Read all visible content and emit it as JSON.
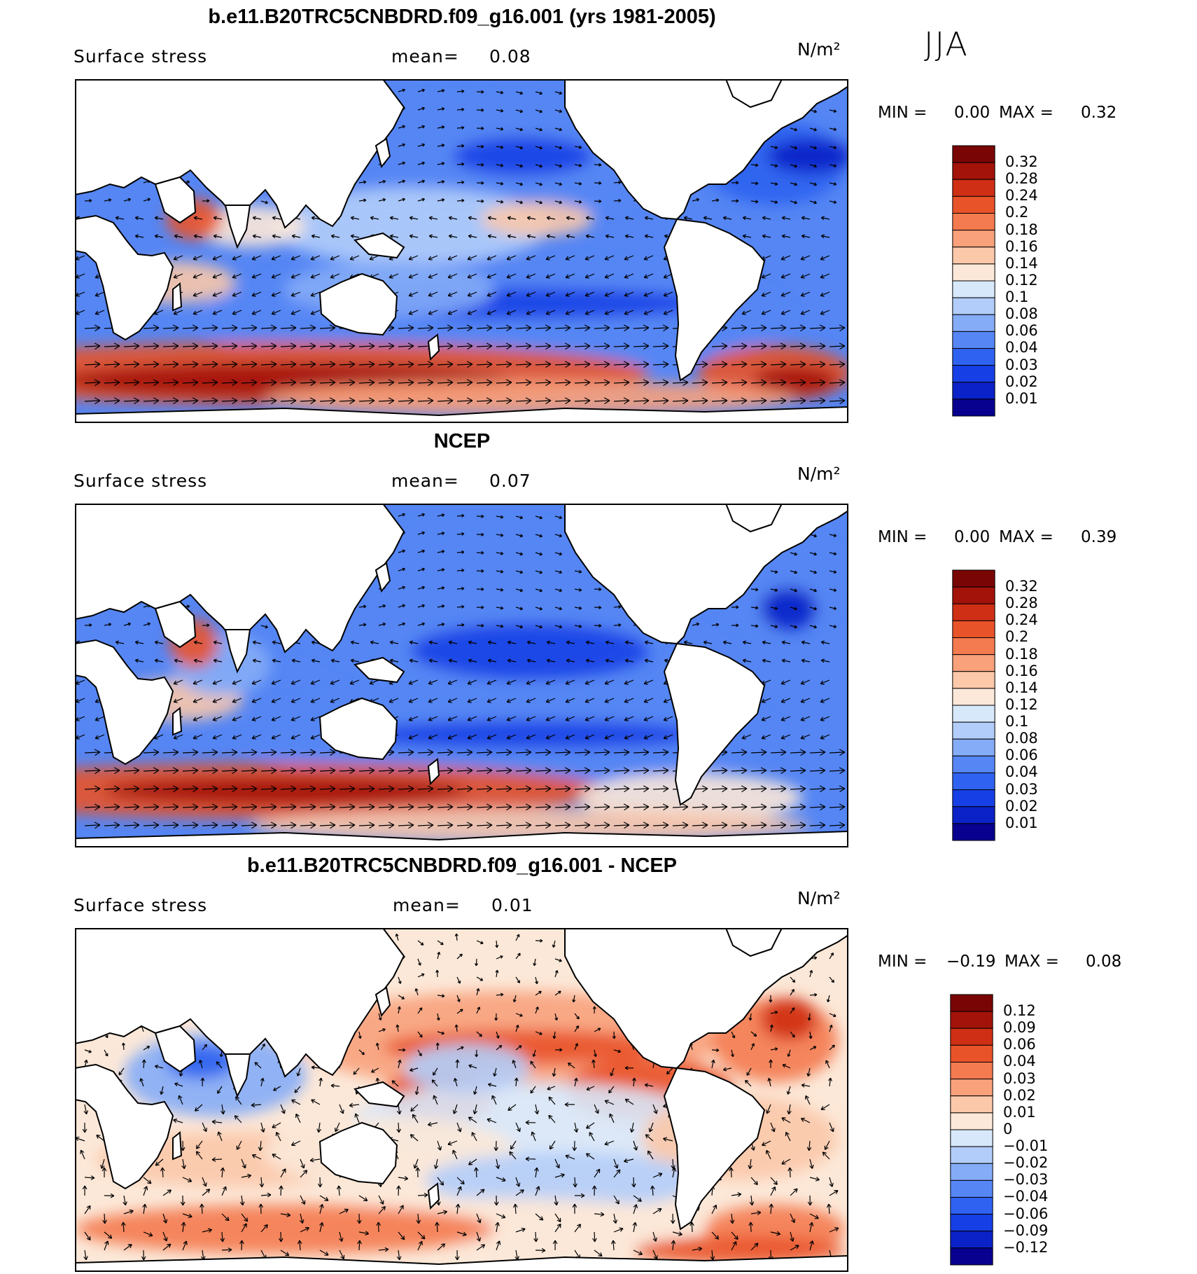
{
  "figure": {
    "season": "JJA",
    "units": "N/m²",
    "land_color": "#ffffff"
  },
  "colors": {
    "positive_scale": [
      "#08008f",
      "#0a22c8",
      "#1640e6",
      "#2f62f0",
      "#5586f4",
      "#85acf7",
      "#b2cdf9",
      "#d8e8fb",
      "#fce8d8",
      "#fbc8aa",
      "#f8a17b",
      "#f47a4f",
      "#e9532a",
      "#cf2f14",
      "#a3130a",
      "#7a0505"
    ],
    "diff_scale": [
      "#08008f",
      "#0a22c8",
      "#1640e6",
      "#2f62f0",
      "#5586f4",
      "#85acf7",
      "#b2cdf9",
      "#d8e8fb",
      "#fce8d8",
      "#fbc8aa",
      "#f8a17b",
      "#f47a4f",
      "#e9532a",
      "#cf2f14",
      "#a3130a",
      "#7a0505"
    ]
  },
  "chart_data": [
    {
      "type": "heatmap",
      "title": "b.e11.B20TRC5CNBDRD.f09_g16.001 (yrs 1981-2005)",
      "variable": "Surface stress",
      "mean_label": "mean=",
      "mean": "0.08",
      "units": "N/m²",
      "min_label": "MIN =",
      "min": "0.00",
      "max_label": "MAX =",
      "max": "0.32",
      "colorbar_labels": [
        "0.32",
        "0.28",
        "0.24",
        "0.2",
        "0.18",
        "0.16",
        "0.14",
        "0.12",
        "0.1",
        "0.08",
        "0.06",
        "0.04",
        "0.03",
        "0.02",
        "0.01"
      ]
    },
    {
      "type": "heatmap",
      "title": "NCEP",
      "variable": "Surface stress",
      "mean_label": "mean=",
      "mean": "0.07",
      "units": "N/m²",
      "min_label": "MIN =",
      "min": "0.00",
      "max_label": "MAX =",
      "max": "0.39",
      "colorbar_labels": [
        "0.32",
        "0.28",
        "0.24",
        "0.2",
        "0.18",
        "0.16",
        "0.14",
        "0.12",
        "0.1",
        "0.08",
        "0.06",
        "0.04",
        "0.03",
        "0.02",
        "0.01"
      ]
    },
    {
      "type": "heatmap",
      "title": "b.e11.B20TRC5CNBDRD.f09_g16.001 - NCEP",
      "variable": "Surface stress",
      "mean_label": "mean=",
      "mean": "0.01",
      "units": "N/m²",
      "min_label": "MIN =",
      "min": "−0.19",
      "max_label": "MAX =",
      "max": "0.08",
      "colorbar_labels": [
        "0.12",
        "0.09",
        "0.06",
        "0.04",
        "0.03",
        "0.02",
        "0.01",
        "0",
        "−0.01",
        "−0.02",
        "−0.03",
        "−0.04",
        "−0.06",
        "−0.09",
        "−0.12"
      ]
    }
  ]
}
